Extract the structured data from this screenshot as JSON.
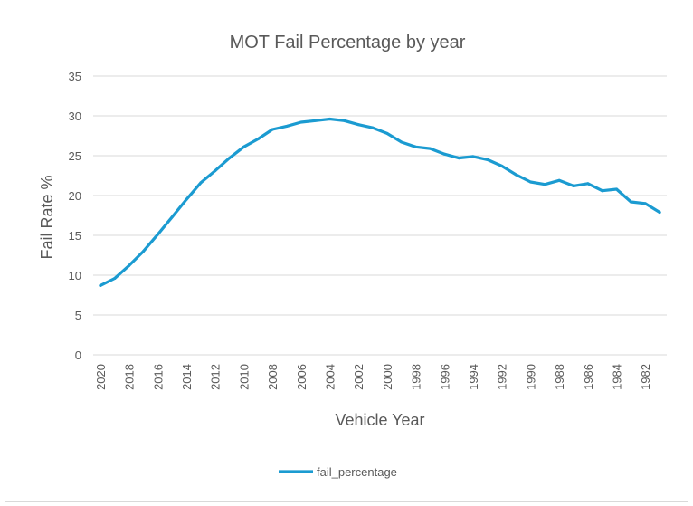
{
  "chart_data": {
    "type": "line",
    "title": "MOT Fail Percentage by year",
    "xlabel": "Vehicle Year",
    "ylabel": "Fail Rate %",
    "ylim": [
      0,
      35
    ],
    "yticks": [
      "0",
      "5",
      "10",
      "15",
      "20",
      "25",
      "30",
      "35"
    ],
    "grid": true,
    "legend_position": "bottom",
    "colors": {
      "line": "#1b9bd1",
      "grid": "#d9d9d9"
    },
    "x": [
      "2020",
      "2019",
      "2018",
      "2017",
      "2016",
      "2015",
      "2014",
      "2013",
      "2012",
      "2011",
      "2010",
      "2009",
      "2008",
      "2007",
      "2006",
      "2005",
      "2004",
      "2003",
      "2002",
      "2001",
      "2000",
      "1999",
      "1998",
      "1997",
      "1996",
      "1995",
      "1994",
      "1993",
      "1992",
      "1991",
      "1990",
      "1989",
      "1988",
      "1987",
      "1986",
      "1985",
      "1984",
      "1983",
      "1982",
      "1981"
    ],
    "xtick_labels": [
      "2020",
      "2018",
      "2016",
      "2014",
      "2012",
      "2010",
      "2008",
      "2006",
      "2004",
      "2002",
      "2000",
      "1998",
      "1996",
      "1994",
      "1992",
      "1990",
      "1988",
      "1986",
      "1984",
      "1982"
    ],
    "series": [
      {
        "name": "fail_percentage",
        "values": [
          8.7,
          9.6,
          11.2,
          13.0,
          15.1,
          17.3,
          19.5,
          21.6,
          23.1,
          24.7,
          26.1,
          27.1,
          28.3,
          28.7,
          29.2,
          29.4,
          29.6,
          29.4,
          28.9,
          28.5,
          27.8,
          26.7,
          26.1,
          25.9,
          25.2,
          24.7,
          24.9,
          24.5,
          23.7,
          22.6,
          21.7,
          21.4,
          21.9,
          21.2,
          21.5,
          20.6,
          20.8,
          19.2,
          19.0,
          17.9
        ]
      }
    ]
  }
}
